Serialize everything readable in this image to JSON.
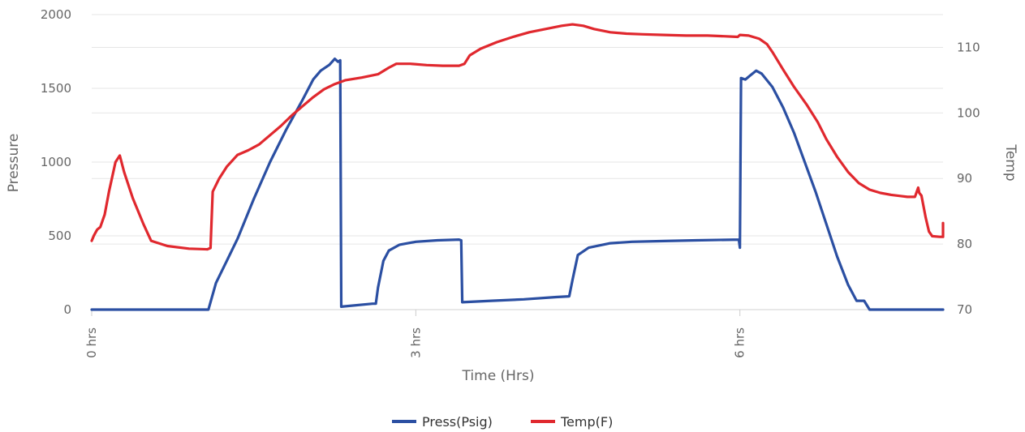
{
  "chart_data": {
    "type": "line",
    "title": "",
    "xlabel": "Time (Hrs)",
    "ylabel": "Pressure",
    "y2label": "Temp",
    "xlim": [
      0,
      7.88
    ],
    "ylim": [
      0,
      2000
    ],
    "y2lim": [
      70,
      115
    ],
    "x_ticks": [
      {
        "x": 0,
        "label": "0 hrs"
      },
      {
        "x": 3,
        "label": "3 hrs"
      },
      {
        "x": 6,
        "label": "6 hrs"
      }
    ],
    "y_ticks": [
      "0",
      "500",
      "1000",
      "1500",
      "2000"
    ],
    "y2_ticks": [
      "70",
      "80",
      "90",
      "100",
      "110"
    ],
    "grid": true,
    "legend_position": "bottom-center",
    "series": [
      {
        "name": "Press(Psig)",
        "axis": "left",
        "color": "#2b4fa2",
        "points": [
          [
            0,
            0
          ],
          [
            1.08,
            0
          ],
          [
            1.15,
            180
          ],
          [
            1.25,
            330
          ],
          [
            1.35,
            480
          ],
          [
            1.5,
            750
          ],
          [
            1.65,
            1000
          ],
          [
            1.8,
            1220
          ],
          [
            1.95,
            1420
          ],
          [
            2.05,
            1560
          ],
          [
            2.12,
            1620
          ],
          [
            2.2,
            1660
          ],
          [
            2.25,
            1700
          ],
          [
            2.28,
            1680
          ],
          [
            2.3,
            1690
          ],
          [
            2.31,
            20
          ],
          [
            2.6,
            40
          ],
          [
            2.63,
            40
          ],
          [
            2.65,
            150
          ],
          [
            2.7,
            330
          ],
          [
            2.75,
            400
          ],
          [
            2.85,
            440
          ],
          [
            3.0,
            460
          ],
          [
            3.2,
            470
          ],
          [
            3.4,
            475
          ],
          [
            3.42,
            470
          ],
          [
            3.43,
            50
          ],
          [
            3.7,
            60
          ],
          [
            4.0,
            70
          ],
          [
            4.3,
            85
          ],
          [
            4.42,
            90
          ],
          [
            4.45,
            200
          ],
          [
            4.5,
            370
          ],
          [
            4.6,
            420
          ],
          [
            4.8,
            450
          ],
          [
            5.0,
            460
          ],
          [
            5.3,
            465
          ],
          [
            5.6,
            470
          ],
          [
            5.99,
            475
          ],
          [
            6.0,
            420
          ],
          [
            6.01,
            1570
          ],
          [
            6.05,
            1560
          ],
          [
            6.1,
            1590
          ],
          [
            6.15,
            1620
          ],
          [
            6.2,
            1600
          ],
          [
            6.3,
            1510
          ],
          [
            6.4,
            1370
          ],
          [
            6.5,
            1200
          ],
          [
            6.6,
            1000
          ],
          [
            6.7,
            800
          ],
          [
            6.8,
            580
          ],
          [
            6.9,
            360
          ],
          [
            7.0,
            170
          ],
          [
            7.08,
            60
          ],
          [
            7.15,
            60
          ],
          [
            7.2,
            0
          ],
          [
            7.88,
            0
          ]
        ]
      },
      {
        "name": "Temp(F)",
        "axis": "right",
        "color": "#e0282e",
        "points": [
          [
            0,
            80.5
          ],
          [
            0.02,
            81.3
          ],
          [
            0.05,
            82.2
          ],
          [
            0.08,
            82.6
          ],
          [
            0.12,
            84.5
          ],
          [
            0.16,
            88
          ],
          [
            0.22,
            92.5
          ],
          [
            0.26,
            93.5
          ],
          [
            0.3,
            91
          ],
          [
            0.38,
            87
          ],
          [
            0.48,
            83
          ],
          [
            0.55,
            80.5
          ],
          [
            0.7,
            79.7
          ],
          [
            0.9,
            79.3
          ],
          [
            1.07,
            79.2
          ],
          [
            1.1,
            79.4
          ],
          [
            1.12,
            88
          ],
          [
            1.18,
            90
          ],
          [
            1.25,
            91.8
          ],
          [
            1.35,
            93.6
          ],
          [
            1.45,
            94.3
          ],
          [
            1.55,
            95.2
          ],
          [
            1.65,
            96.6
          ],
          [
            1.75,
            98
          ],
          [
            1.85,
            99.6
          ],
          [
            1.95,
            101
          ],
          [
            2.05,
            102.4
          ],
          [
            2.15,
            103.6
          ],
          [
            2.25,
            104.4
          ],
          [
            2.35,
            105
          ],
          [
            2.5,
            105.4
          ],
          [
            2.65,
            105.9
          ],
          [
            2.75,
            106.9
          ],
          [
            2.82,
            107.5
          ],
          [
            2.95,
            107.5
          ],
          [
            3.1,
            107.3
          ],
          [
            3.25,
            107.2
          ],
          [
            3.4,
            107.2
          ],
          [
            3.45,
            107.5
          ],
          [
            3.5,
            108.8
          ],
          [
            3.6,
            109.8
          ],
          [
            3.75,
            110.8
          ],
          [
            3.9,
            111.6
          ],
          [
            4.05,
            112.3
          ],
          [
            4.2,
            112.8
          ],
          [
            4.35,
            113.3
          ],
          [
            4.45,
            113.5
          ],
          [
            4.55,
            113.3
          ],
          [
            4.65,
            112.8
          ],
          [
            4.8,
            112.3
          ],
          [
            4.95,
            112.1
          ],
          [
            5.1,
            112
          ],
          [
            5.3,
            111.9
          ],
          [
            5.5,
            111.8
          ],
          [
            5.7,
            111.8
          ],
          [
            5.85,
            111.7
          ],
          [
            5.98,
            111.6
          ],
          [
            6.0,
            111.9
          ],
          [
            6.08,
            111.8
          ],
          [
            6.18,
            111.3
          ],
          [
            6.25,
            110.5
          ],
          [
            6.3,
            109.3
          ],
          [
            6.4,
            106.6
          ],
          [
            6.5,
            104
          ],
          [
            6.62,
            101.2
          ],
          [
            6.72,
            98.6
          ],
          [
            6.8,
            96
          ],
          [
            6.9,
            93.3
          ],
          [
            7.0,
            91
          ],
          [
            7.1,
            89.3
          ],
          [
            7.2,
            88.3
          ],
          [
            7.3,
            87.8
          ],
          [
            7.4,
            87.5
          ],
          [
            7.5,
            87.3
          ],
          [
            7.55,
            87.2
          ],
          [
            7.62,
            87.2
          ],
          [
            7.65,
            88.6
          ],
          [
            7.66,
            87.8
          ],
          [
            7.68,
            87.4
          ],
          [
            7.72,
            84
          ],
          [
            7.75,
            81.9
          ],
          [
            7.78,
            81.2
          ],
          [
            7.85,
            81.1
          ],
          [
            7.9,
            81.1
          ],
          [
            7.93,
            83.1
          ],
          [
            7.96,
            83.2
          ],
          [
            8.0,
            82.6
          ],
          [
            8.05,
            82
          ],
          [
            8.1,
            81.5
          ],
          [
            8.18,
            81.2
          ]
        ]
      }
    ]
  }
}
